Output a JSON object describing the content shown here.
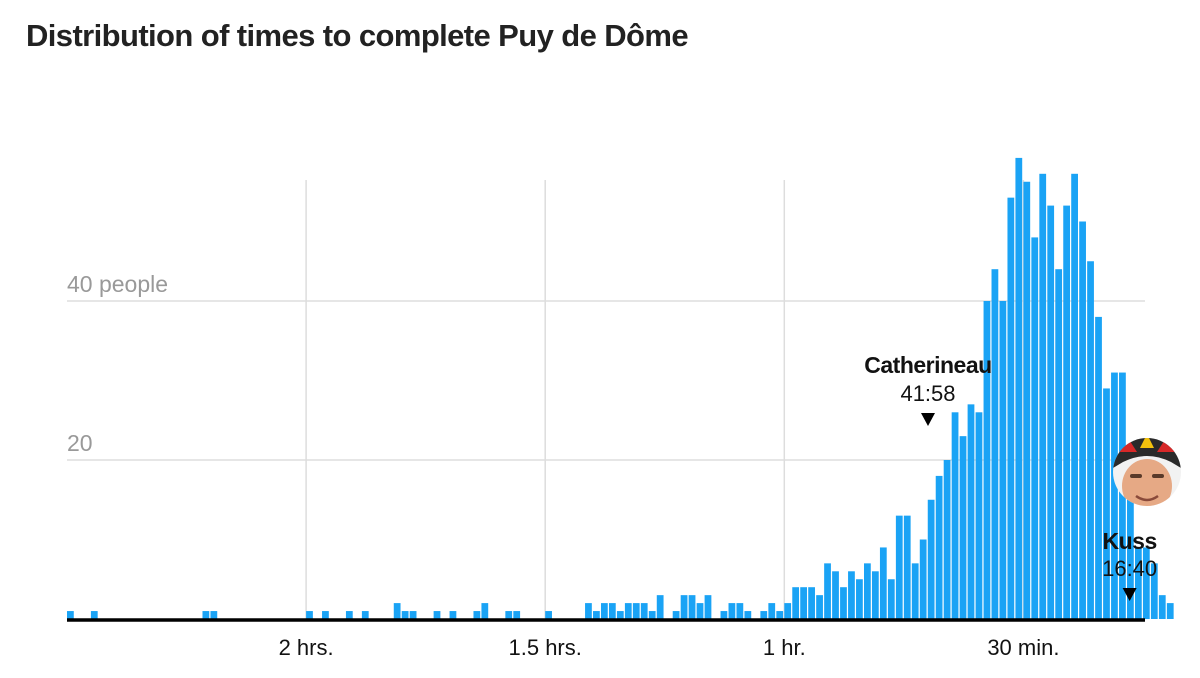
{
  "title": "Distribution of times to complete Puy de Dôme",
  "chart_data": {
    "type": "bar",
    "title": "Distribution of times to complete Puy de Dôme",
    "xlabel": "",
    "ylabel": "",
    "x_axis": "time to complete in minutes, reversed (slowest on the left, fastest on the right)",
    "x_range_minutes": [
      150,
      14
    ],
    "bin_width_minutes": 1,
    "ylim": [
      0,
      58
    ],
    "grid": true,
    "colors": {
      "bar": "#1aa3f5",
      "grid": "#dddddd",
      "baseline": "#000000"
    },
    "y_ticks": [
      {
        "value": 40,
        "label": "40 people"
      },
      {
        "value": 20,
        "label": "20"
      }
    ],
    "x_ticks": [
      {
        "minutes": 120,
        "label": "2 hrs."
      },
      {
        "minutes": 90,
        "label": "1.5 hrs."
      },
      {
        "minutes": 60,
        "label": "1 hr."
      },
      {
        "minutes": 30,
        "label": "30 min."
      }
    ],
    "bins_start_minutes": 150,
    "counts": [
      1,
      0,
      0,
      1,
      0,
      0,
      0,
      0,
      0,
      0,
      0,
      0,
      0,
      0,
      0,
      0,
      0,
      1,
      1,
      0,
      0,
      0,
      0,
      0,
      0,
      0,
      0,
      0,
      0,
      0,
      1,
      0,
      1,
      0,
      0,
      1,
      0,
      1,
      0,
      0,
      0,
      2,
      1,
      1,
      0,
      0,
      1,
      0,
      1,
      0,
      0,
      1,
      2,
      0,
      0,
      1,
      1,
      0,
      0,
      0,
      1,
      0,
      0,
      0,
      0,
      2,
      1,
      2,
      2,
      1,
      2,
      2,
      2,
      1,
      3,
      0,
      1,
      3,
      3,
      2,
      3,
      0,
      1,
      2,
      2,
      1,
      0,
      1,
      2,
      1,
      2,
      4,
      4,
      4,
      3,
      7,
      6,
      4,
      6,
      5,
      7,
      6,
      9,
      5,
      13,
      13,
      7,
      10,
      15,
      18,
      20,
      26,
      23,
      27,
      26,
      40,
      44,
      40,
      53,
      58,
      55,
      48,
      56,
      52,
      44,
      52,
      56,
      50,
      45,
      38,
      29,
      31,
      31,
      19,
      9,
      9,
      7,
      3,
      2
    ],
    "annotations": [
      {
        "name": "Catherineau",
        "time": "41:58",
        "minutes": 41.97,
        "marker": "triangle-down"
      },
      {
        "name": "Kuss",
        "time": "16:40",
        "minutes": 16.67,
        "marker": "triangle-down",
        "photo": "rider-headshot-with-helmet"
      }
    ]
  }
}
